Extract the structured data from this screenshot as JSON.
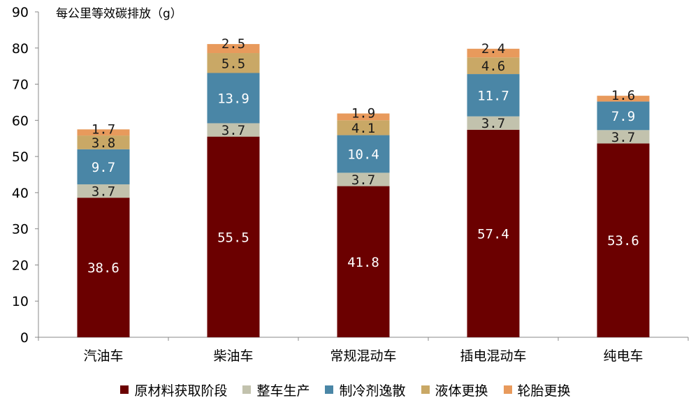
{
  "chart_data": {
    "type": "bar",
    "stacked": true,
    "title": "每公里等效碳排放（g）",
    "categories": [
      "汽油车",
      "柴油车",
      "常规混动车",
      "插电混动车",
      "纯电车"
    ],
    "ylim": [
      0,
      90
    ],
    "yticks": [
      0,
      10,
      20,
      30,
      40,
      50,
      60,
      70,
      80,
      90
    ],
    "grid": false,
    "legend_position": "bottom",
    "series": [
      {
        "name": "原材料获取阶段",
        "color": "#6b0000",
        "label_color": "#ffffff",
        "values": [
          38.6,
          55.5,
          41.8,
          57.4,
          53.6
        ],
        "labels": [
          "38.6",
          "55.5",
          "41.8",
          "57.4",
          "53.6"
        ]
      },
      {
        "name": "整车生产",
        "color": "#c2c2ad",
        "label_color": "#1a1a1a",
        "values": [
          3.7,
          3.7,
          3.7,
          3.7,
          3.7
        ],
        "labels": [
          "3.7",
          "3.7",
          "3.7",
          "3.7",
          "3.7"
        ]
      },
      {
        "name": "制冷剂逸散",
        "color": "#4a86a6",
        "label_color": "#ffffff",
        "values": [
          9.7,
          13.9,
          10.4,
          11.7,
          7.9
        ],
        "labels": [
          "9.7",
          "13.9",
          "10.4",
          "11.7",
          "7.9"
        ]
      },
      {
        "name": "液体更换",
        "color": "#c9a866",
        "label_color": "#1a1a1a",
        "values": [
          3.8,
          5.5,
          4.1,
          4.6,
          0
        ],
        "labels": [
          "3.8",
          "5.5",
          "4.1",
          "4.6",
          ""
        ]
      },
      {
        "name": "轮胎更换",
        "color": "#e89a5c",
        "label_color": "#1a1a1a",
        "values": [
          1.7,
          2.5,
          1.9,
          2.4,
          1.6
        ],
        "labels": [
          "1.7",
          "2.5",
          "1.9",
          "2.4",
          "1.6"
        ]
      }
    ]
  }
}
